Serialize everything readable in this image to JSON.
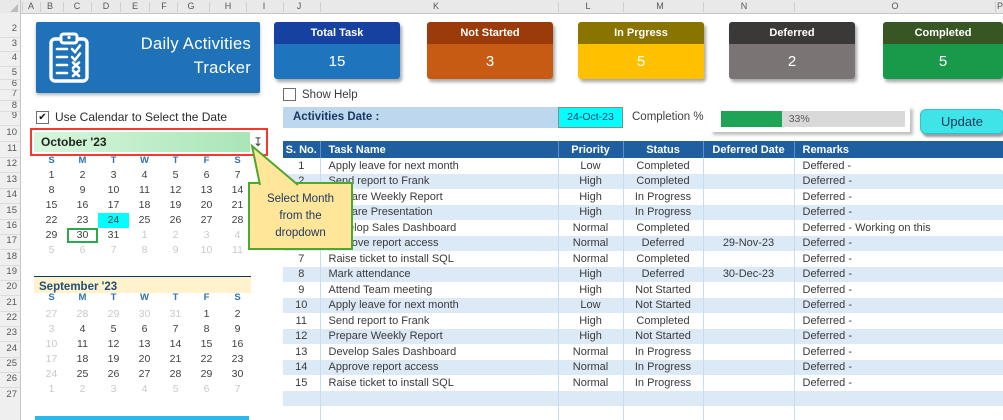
{
  "sheet": {
    "column_letters": [
      "A",
      "B",
      "C",
      "D",
      "E",
      "F",
      "G",
      "H",
      "I",
      "J",
      "K",
      "L",
      "M",
      "N",
      "O",
      "P"
    ],
    "row_numbers": [
      "2",
      "3",
      "4",
      "5",
      "6",
      "7",
      "8",
      "9",
      "10",
      "11",
      "12",
      "13",
      "14",
      "15",
      "16",
      "17",
      "18",
      "19",
      "20",
      "21",
      "22",
      "23",
      "24",
      "25",
      "26",
      "27"
    ]
  },
  "header": {
    "title_line1": "Daily Activities",
    "title_line2": "Tracker"
  },
  "cards": [
    {
      "label": "Total Task",
      "value": "15",
      "header_color": "#1741A0",
      "body_color": "#1F74BE"
    },
    {
      "label": "Not Started",
      "value": "3",
      "header_color": "#9B3B09",
      "body_color": "#C85B13"
    },
    {
      "label": "In Prgress",
      "value": "5",
      "header_color": "#8A7400",
      "body_color": "#FFC000"
    },
    {
      "label": "Deferred",
      "value": "2",
      "header_color": "#3B3838",
      "body_color": "#7A7574"
    },
    {
      "label": "Completed",
      "value": "5",
      "header_color": "#375623",
      "body_color": "#189A4A"
    }
  ],
  "controls": {
    "show_help_label": "Show Help",
    "show_help_checked": false,
    "use_calendar_label": "Use Calendar to Select the Date",
    "use_calendar_checked": true,
    "activities_date_label": "Activities Date :",
    "activities_date_value": "24-Oct-23",
    "completion_label": "Completion %",
    "completion_value": "33%",
    "completion_percent": 33,
    "update_label": "Update"
  },
  "tooltip": {
    "lines": [
      "Select Month",
      "from the",
      "dropdown"
    ]
  },
  "calendars": [
    {
      "title": "October '23",
      "day_headers": [
        "S",
        "M",
        "T",
        "W",
        "T",
        "F",
        "S"
      ],
      "days": [
        "1",
        "2",
        "3",
        "4",
        "5",
        "6",
        "7",
        "8",
        "9",
        "10",
        "11",
        "12",
        "13",
        "14",
        "15",
        "16",
        "17",
        "18",
        "19",
        "20",
        "21",
        "22",
        "23",
        {
          "d": "24",
          "selected": true
        },
        "25",
        "26",
        "27",
        "28",
        "29",
        {
          "d": "30",
          "today": true
        },
        "31",
        {
          "d": "1",
          "muted": true
        },
        {
          "d": "2",
          "muted": true
        },
        {
          "d": "3",
          "muted": true
        },
        {
          "d": "4",
          "muted": true
        },
        {
          "d": "5",
          "muted": true
        },
        {
          "d": "6",
          "muted": true
        },
        {
          "d": "7",
          "muted": true
        },
        {
          "d": "8",
          "muted": true
        },
        {
          "d": "9",
          "muted": true
        },
        {
          "d": "10",
          "muted": true
        },
        {
          "d": "11",
          "muted": true
        }
      ]
    },
    {
      "title": "September '23",
      "day_headers": [
        "S",
        "M",
        "T",
        "W",
        "T",
        "F",
        "S"
      ],
      "days": [
        {
          "d": "27",
          "muted": true
        },
        {
          "d": "28",
          "muted": true
        },
        {
          "d": "29",
          "muted": true
        },
        {
          "d": "30",
          "muted": true
        },
        {
          "d": "31",
          "muted": true
        },
        "1",
        "2",
        {
          "d": "3",
          "muted": true
        },
        "4",
        "5",
        "6",
        "7",
        "8",
        "9",
        {
          "d": "10",
          "muted": true
        },
        "11",
        "12",
        "13",
        "14",
        "15",
        "16",
        {
          "d": "17",
          "muted": true
        },
        "18",
        "19",
        "20",
        "21",
        "22",
        "23",
        {
          "d": "24",
          "muted": true
        },
        "25",
        "26",
        "27",
        "28",
        "29",
        "30",
        {
          "d": "1",
          "muted": true
        },
        {
          "d": "2",
          "muted": true
        },
        {
          "d": "3",
          "muted": true
        },
        {
          "d": "4",
          "muted": true
        },
        {
          "d": "5",
          "muted": true
        },
        {
          "d": "6",
          "muted": true
        },
        {
          "d": "7",
          "muted": true
        }
      ]
    }
  ],
  "table": {
    "headers": [
      "S. No.",
      "Task Name",
      "Priority",
      "Status",
      "Deferred Date",
      "Remarks"
    ],
    "rows": [
      [
        "1",
        "Apply leave for next month",
        "Low",
        "Completed",
        "",
        "Deffered -"
      ],
      [
        "2",
        "Send report to Frank",
        "High",
        "Completed",
        "",
        "Deferred -"
      ],
      [
        "3",
        "Prepare Weekly Report",
        "High",
        "In Progress",
        "",
        "Deferred -"
      ],
      [
        "4",
        "Prepare Presentation",
        "High",
        "In Progress",
        "",
        "Deferred -"
      ],
      [
        "5",
        "Develop Sales Dashboard",
        "Normal",
        "Completed",
        "",
        "Deferred - Working on this"
      ],
      [
        "6",
        "Approve report access",
        "Normal",
        "Deferred",
        "29-Nov-23",
        "Deferred -"
      ],
      [
        "7",
        "Raise ticket to install SQL",
        "Normal",
        "Completed",
        "",
        "Deferred -"
      ],
      [
        "8",
        "Mark attendance",
        "High",
        "Deferred",
        "30-Dec-23",
        "Deferred -"
      ],
      [
        "9",
        "Attend Team meeting",
        "High",
        "Not Started",
        "",
        "Deferred -"
      ],
      [
        "10",
        "Apply leave for next month",
        "Low",
        "Not Started",
        "",
        "Deferred -"
      ],
      [
        "11",
        "Send report to Frank",
        "High",
        "Completed",
        "",
        "Deferred -"
      ],
      [
        "12",
        "Prepare Weekly Report",
        "High",
        "Not Started",
        "",
        "Deferred -"
      ],
      [
        "13",
        "Develop Sales Dashboard",
        "Normal",
        "In Progress",
        "",
        "Deferred -"
      ],
      [
        "14",
        "Approve report access",
        "Normal",
        "In Progress",
        "",
        "Deferred -"
      ],
      [
        "15",
        "Raise ticket to install SQL",
        "Normal",
        "In Progress",
        "",
        "Deferred -"
      ]
    ]
  },
  "colors": {
    "selected_date": "#00FFFF",
    "progress_fill": "#1FA455",
    "update_button": "#3EE4E7",
    "accent_strip": "#29B9EA",
    "tooltip_bg": "#FFE699",
    "tooltip_border": "#4EA72E",
    "dropdown_border": "#F5392E",
    "table_header": "#1F5FA0"
  }
}
